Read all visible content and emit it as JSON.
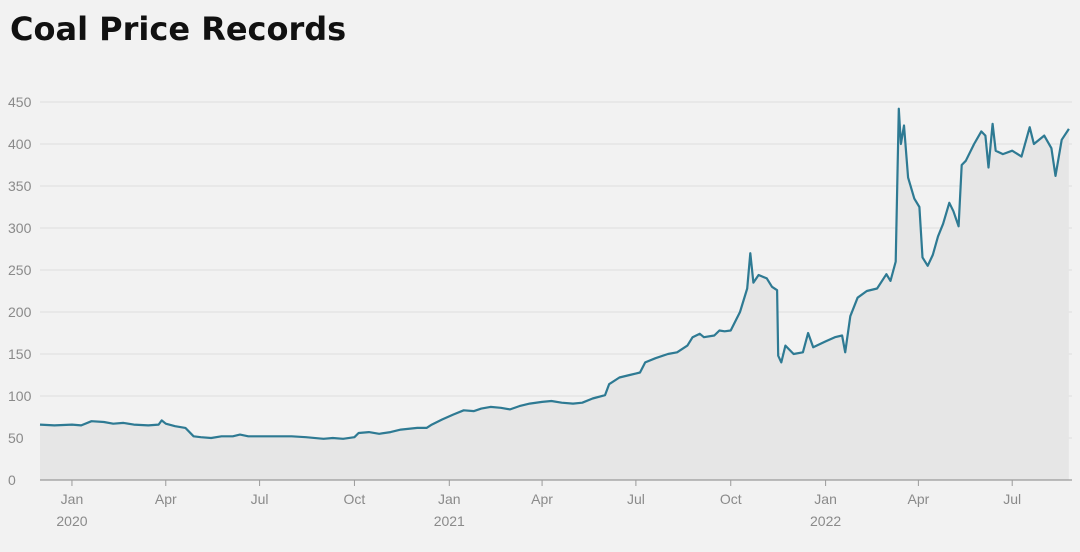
{
  "title": "Coal Price Records",
  "chart_data": {
    "type": "area",
    "title": "Coal Price Records",
    "xlabel": "",
    "ylabel": "",
    "ylim": [
      0,
      450
    ],
    "yticks": [
      0,
      50,
      100,
      150,
      200,
      250,
      300,
      350,
      400,
      450
    ],
    "xlim": [
      "2019-12-01",
      "2022-08-28"
    ],
    "grid": true,
    "legend": "none",
    "colors": {
      "line": "#2e7a93",
      "fill": "#e6e6e6",
      "background": "#f2f2f2",
      "grid": "#dedede"
    },
    "x_ticks": [
      {
        "date": "2020-01-01",
        "label": "Jan",
        "year": "2020"
      },
      {
        "date": "2020-04-01",
        "label": "Apr",
        "year": ""
      },
      {
        "date": "2020-07-01",
        "label": "Jul",
        "year": ""
      },
      {
        "date": "2020-10-01",
        "label": "Oct",
        "year": ""
      },
      {
        "date": "2021-01-01",
        "label": "Jan",
        "year": "2021"
      },
      {
        "date": "2021-04-01",
        "label": "Apr",
        "year": ""
      },
      {
        "date": "2021-07-01",
        "label": "Jul",
        "year": ""
      },
      {
        "date": "2021-10-01",
        "label": "Oct",
        "year": ""
      },
      {
        "date": "2022-01-01",
        "label": "Jan",
        "year": "2022"
      },
      {
        "date": "2022-04-01",
        "label": "Apr",
        "year": ""
      },
      {
        "date": "2022-07-01",
        "label": "Jul",
        "year": ""
      }
    ],
    "series": [
      {
        "points": [
          [
            "2019-12-01",
            66
          ],
          [
            "2019-12-15",
            65
          ],
          [
            "2020-01-01",
            66
          ],
          [
            "2020-01-10",
            65
          ],
          [
            "2020-01-20",
            70
          ],
          [
            "2020-02-01",
            69
          ],
          [
            "2020-02-10",
            67
          ],
          [
            "2020-02-20",
            68
          ],
          [
            "2020-03-01",
            66
          ],
          [
            "2020-03-15",
            65
          ],
          [
            "2020-03-25",
            66
          ],
          [
            "2020-03-28",
            71
          ],
          [
            "2020-04-01",
            67
          ],
          [
            "2020-04-10",
            64
          ],
          [
            "2020-04-20",
            62
          ],
          [
            "2020-04-28",
            52
          ],
          [
            "2020-05-05",
            51
          ],
          [
            "2020-05-15",
            50
          ],
          [
            "2020-05-25",
            52
          ],
          [
            "2020-06-05",
            52
          ],
          [
            "2020-06-12",
            54
          ],
          [
            "2020-06-20",
            52
          ],
          [
            "2020-07-01",
            52
          ],
          [
            "2020-07-15",
            52
          ],
          [
            "2020-08-01",
            52
          ],
          [
            "2020-08-15",
            51
          ],
          [
            "2020-09-01",
            49
          ],
          [
            "2020-09-10",
            50
          ],
          [
            "2020-09-20",
            49
          ],
          [
            "2020-10-01",
            51
          ],
          [
            "2020-10-05",
            56
          ],
          [
            "2020-10-15",
            57
          ],
          [
            "2020-10-25",
            55
          ],
          [
            "2020-11-05",
            57
          ],
          [
            "2020-11-15",
            60
          ],
          [
            "2020-12-01",
            62
          ],
          [
            "2020-12-10",
            62
          ],
          [
            "2020-12-15",
            66
          ],
          [
            "2020-12-25",
            72
          ],
          [
            "2021-01-05",
            78
          ],
          [
            "2021-01-15",
            83
          ],
          [
            "2021-01-25",
            82
          ],
          [
            "2021-02-01",
            85
          ],
          [
            "2021-02-10",
            87
          ],
          [
            "2021-02-20",
            86
          ],
          [
            "2021-03-01",
            84
          ],
          [
            "2021-03-10",
            88
          ],
          [
            "2021-03-20",
            91
          ],
          [
            "2021-04-01",
            93
          ],
          [
            "2021-04-10",
            94
          ],
          [
            "2021-04-20",
            92
          ],
          [
            "2021-05-01",
            91
          ],
          [
            "2021-05-10",
            92
          ],
          [
            "2021-05-20",
            97
          ],
          [
            "2021-06-01",
            101
          ],
          [
            "2021-06-05",
            114
          ],
          [
            "2021-06-15",
            122
          ],
          [
            "2021-06-25",
            125
          ],
          [
            "2021-07-05",
            128
          ],
          [
            "2021-07-10",
            140
          ],
          [
            "2021-07-20",
            145
          ],
          [
            "2021-08-01",
            150
          ],
          [
            "2021-08-10",
            152
          ],
          [
            "2021-08-20",
            160
          ],
          [
            "2021-08-25",
            170
          ],
          [
            "2021-09-01",
            174
          ],
          [
            "2021-09-05",
            170
          ],
          [
            "2021-09-15",
            172
          ],
          [
            "2021-09-20",
            178
          ],
          [
            "2021-09-25",
            177
          ],
          [
            "2021-10-01",
            178
          ],
          [
            "2021-10-10",
            200
          ],
          [
            "2021-10-17",
            228
          ],
          [
            "2021-10-20",
            270
          ],
          [
            "2021-10-23",
            235
          ],
          [
            "2021-10-28",
            244
          ],
          [
            "2021-11-05",
            240
          ],
          [
            "2021-11-10",
            230
          ],
          [
            "2021-11-15",
            226
          ],
          [
            "2021-11-16",
            148
          ],
          [
            "2021-11-19",
            140
          ],
          [
            "2021-11-23",
            160
          ],
          [
            "2021-12-01",
            150
          ],
          [
            "2021-12-10",
            152
          ],
          [
            "2021-12-15",
            175
          ],
          [
            "2021-12-20",
            158
          ],
          [
            "2022-01-01",
            165
          ],
          [
            "2022-01-10",
            170
          ],
          [
            "2022-01-17",
            172
          ],
          [
            "2022-01-20",
            152
          ],
          [
            "2022-01-25",
            195
          ],
          [
            "2022-02-01",
            217
          ],
          [
            "2022-02-10",
            225
          ],
          [
            "2022-02-20",
            228
          ],
          [
            "2022-03-01",
            245
          ],
          [
            "2022-03-05",
            237
          ],
          [
            "2022-03-10",
            260
          ],
          [
            "2022-03-13",
            442
          ],
          [
            "2022-03-15",
            400
          ],
          [
            "2022-03-18",
            422
          ],
          [
            "2022-03-22",
            360
          ],
          [
            "2022-03-28",
            335
          ],
          [
            "2022-04-02",
            325
          ],
          [
            "2022-04-05",
            265
          ],
          [
            "2022-04-10",
            255
          ],
          [
            "2022-04-15",
            268
          ],
          [
            "2022-04-20",
            290
          ],
          [
            "2022-04-25",
            305
          ],
          [
            "2022-05-01",
            330
          ],
          [
            "2022-05-05",
            320
          ],
          [
            "2022-05-10",
            302
          ],
          [
            "2022-05-13",
            375
          ],
          [
            "2022-05-17",
            380
          ],
          [
            "2022-05-25",
            400
          ],
          [
            "2022-06-01",
            415
          ],
          [
            "2022-06-05",
            410
          ],
          [
            "2022-06-08",
            372
          ],
          [
            "2022-06-12",
            424
          ],
          [
            "2022-06-15",
            392
          ],
          [
            "2022-06-22",
            388
          ],
          [
            "2022-07-01",
            392
          ],
          [
            "2022-07-10",
            385
          ],
          [
            "2022-07-18",
            420
          ],
          [
            "2022-07-22",
            400
          ],
          [
            "2022-08-01",
            410
          ],
          [
            "2022-08-08",
            395
          ],
          [
            "2022-08-12",
            362
          ],
          [
            "2022-08-18",
            405
          ],
          [
            "2022-08-25",
            418
          ]
        ]
      }
    ]
  }
}
